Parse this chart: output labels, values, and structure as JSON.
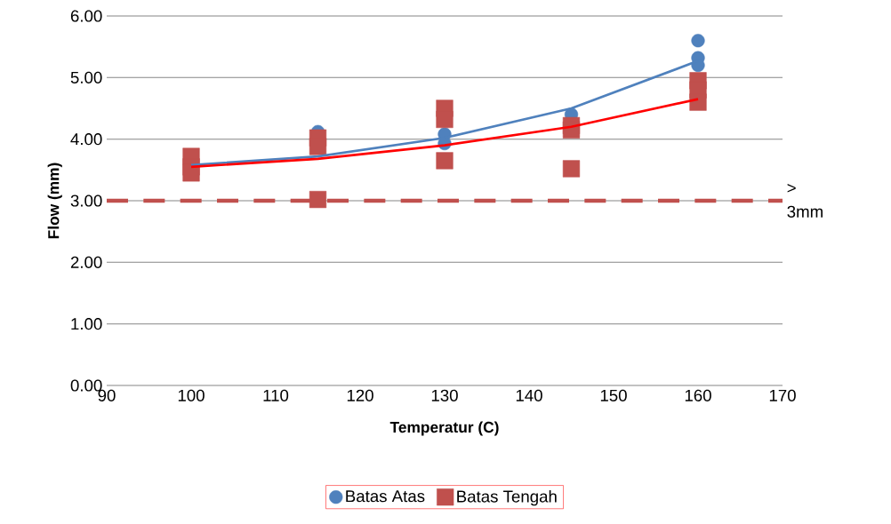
{
  "chart_data": {
    "type": "scatter",
    "xlabel": "Temperatur (C)",
    "ylabel": "Flow (mm)",
    "xlim": [
      90,
      170
    ],
    "xticks": [
      90,
      100,
      110,
      120,
      130,
      140,
      150,
      160,
      170
    ],
    "ylim": [
      0,
      6
    ],
    "yticks": [
      {
        "value": 0,
        "label": "0.00"
      },
      {
        "value": 1,
        "label": "1.00"
      },
      {
        "value": 2,
        "label": "2.00"
      },
      {
        "value": 3,
        "label": "3.00"
      },
      {
        "value": 4,
        "label": "4.00"
      },
      {
        "value": 5,
        "label": "5.00"
      },
      {
        "value": 6,
        "label": "6.00"
      }
    ],
    "grid": "y",
    "legend": "bottom",
    "series": [
      {
        "name": "Batas Atas",
        "marker": "circle",
        "color": "#4f81bd",
        "x": [
          115,
          130,
          130,
          145,
          160,
          160,
          160
        ],
        "values": [
          4.12,
          4.08,
          3.93,
          4.4,
          5.6,
          5.32,
          5.2
        ]
      },
      {
        "name": "Batas Tengah",
        "marker": "square",
        "color": "#c0504d",
        "x": [
          100,
          100,
          100,
          115,
          115,
          115,
          130,
          130,
          130,
          145,
          145,
          145,
          160,
          160,
          160
        ],
        "values": [
          3.72,
          3.55,
          3.45,
          4.02,
          3.88,
          3.02,
          4.5,
          4.32,
          3.65,
          4.22,
          4.15,
          3.52,
          4.95,
          4.8,
          4.6
        ]
      },
      {
        "type": "line",
        "marker": "none",
        "color": "#4f81bd",
        "x": [
          100,
          115,
          130,
          145,
          160
        ],
        "values": [
          3.58,
          3.72,
          4.02,
          4.5,
          5.27
        ]
      },
      {
        "type": "line",
        "marker": "none",
        "color": "#ff0000",
        "x": [
          100,
          115,
          130,
          145,
          160
        ],
        "values": [
          3.55,
          3.68,
          3.9,
          4.2,
          4.65
        ]
      }
    ],
    "ref_lines": [
      {
        "axis": "y",
        "value": 3,
        "label": "> 3mm",
        "color": "#c0504d",
        "line_style": "dashed"
      }
    ]
  }
}
